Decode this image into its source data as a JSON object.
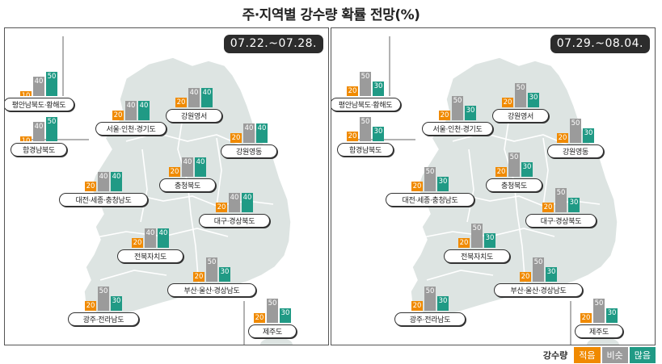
{
  "title": "주·지역별 강수량 확률 전망(%)",
  "legend": {
    "title": "강수량",
    "items": [
      {
        "key": "low",
        "label": "적음",
        "color": "#f08a00"
      },
      {
        "key": "similar",
        "label": "비슷",
        "color": "#9b9b9b"
      },
      {
        "key": "high",
        "label": "많음",
        "color": "#209a85"
      }
    ]
  },
  "panels": [
    {
      "period": "07.22.~07.28.",
      "regions": [
        {
          "name": "평안남북도·황해도",
          "low": 10,
          "similar": 40,
          "high": 50
        },
        {
          "name": "함경남북도",
          "low": 10,
          "similar": 40,
          "high": 50
        },
        {
          "name": "서울·인천·경기도",
          "low": 20,
          "similar": 40,
          "high": 40
        },
        {
          "name": "강원영서",
          "low": 20,
          "similar": 40,
          "high": 40
        },
        {
          "name": "강원영동",
          "low": 20,
          "similar": 40,
          "high": 40
        },
        {
          "name": "충청북도",
          "low": 20,
          "similar": 40,
          "high": 40
        },
        {
          "name": "대전·세종·충청남도",
          "low": 20,
          "similar": 40,
          "high": 40
        },
        {
          "name": "대구·경상북도",
          "low": 20,
          "similar": 40,
          "high": 40
        },
        {
          "name": "전북자치도",
          "low": 20,
          "similar": 40,
          "high": 40
        },
        {
          "name": "부산·울산·경상남도",
          "low": 20,
          "similar": 50,
          "high": 30
        },
        {
          "name": "광주·전라남도",
          "low": 20,
          "similar": 50,
          "high": 30
        },
        {
          "name": "제주도",
          "low": 20,
          "similar": 50,
          "high": 30
        }
      ]
    },
    {
      "period": "07.29.~08.04.",
      "regions": [
        {
          "name": "평안남북도·황해도",
          "low": 20,
          "similar": 50,
          "high": 30
        },
        {
          "name": "함경남북도",
          "low": 20,
          "similar": 50,
          "high": 30
        },
        {
          "name": "서울·인천·경기도",
          "low": 20,
          "similar": 50,
          "high": 30
        },
        {
          "name": "강원영서",
          "low": 20,
          "similar": 50,
          "high": 30
        },
        {
          "name": "강원영동",
          "low": 20,
          "similar": 50,
          "high": 30
        },
        {
          "name": "충청북도",
          "low": 20,
          "similar": 50,
          "high": 30
        },
        {
          "name": "대전·세종·충청남도",
          "low": 20,
          "similar": 50,
          "high": 30
        },
        {
          "name": "대구·경상북도",
          "low": 20,
          "similar": 50,
          "high": 30
        },
        {
          "name": "전북자치도",
          "low": 20,
          "similar": 50,
          "high": 30
        },
        {
          "name": "부산·울산·경상남도",
          "low": 20,
          "similar": 50,
          "high": 30
        },
        {
          "name": "광주·전라남도",
          "low": 20,
          "similar": 50,
          "high": 30
        },
        {
          "name": "제주도",
          "low": 20,
          "similar": 50,
          "high": 30
        }
      ]
    }
  ]
}
